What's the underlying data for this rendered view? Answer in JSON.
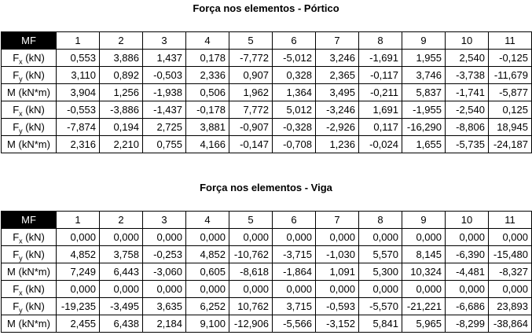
{
  "portico": {
    "title": "Força nos elementos - Pórtico",
    "header_label": "MF",
    "columns": [
      "1",
      "2",
      "3",
      "4",
      "5",
      "6",
      "7",
      "8",
      "9",
      "10",
      "11"
    ],
    "rows": [
      {
        "symbol": "F",
        "sub": "x",
        "unit": "(kN)",
        "values": [
          "0,553",
          "3,886",
          "1,437",
          "0,178",
          "-7,772",
          "-5,012",
          "3,246",
          "-1,691",
          "1,955",
          "2,540",
          "-0,125"
        ]
      },
      {
        "symbol": "F",
        "sub": "y",
        "unit": "(kN)",
        "values": [
          "3,110",
          "0,892",
          "-0,503",
          "2,336",
          "0,907",
          "0,328",
          "2,365",
          "-0,117",
          "3,746",
          "-3,738",
          "-11,679"
        ]
      },
      {
        "symbol": "M",
        "sub": "",
        "unit": "(kN*m)",
        "values": [
          "3,904",
          "1,256",
          "-1,938",
          "0,506",
          "1,962",
          "1,364",
          "3,495",
          "-0,211",
          "5,837",
          "-1,741",
          "-5,877"
        ]
      },
      {
        "symbol": "F",
        "sub": "x",
        "unit": "(kN)",
        "values": [
          "-0,553",
          "-3,886",
          "-1,437",
          "-0,178",
          "7,772",
          "5,012",
          "-3,246",
          "1,691",
          "-1,955",
          "-2,540",
          "0,125"
        ]
      },
      {
        "symbol": "F",
        "sub": "y",
        "unit": "(kN)",
        "values": [
          "-7,874",
          "0,194",
          "2,725",
          "3,881",
          "-0,907",
          "-0,328",
          "-2,926",
          "0,117",
          "-16,290",
          "-8,806",
          "18,945"
        ]
      },
      {
        "symbol": "M",
        "sub": "",
        "unit": "(kN*m)",
        "values": [
          "2,316",
          "2,210",
          "0,755",
          "4,166",
          "-0,147",
          "-0,708",
          "1,236",
          "-0,024",
          "1,655",
          "-5,735",
          "-24,187"
        ]
      }
    ]
  },
  "viga": {
    "title": "Força nos elementos - Viga",
    "header_label": "MF",
    "columns": [
      "1",
      "2",
      "3",
      "4",
      "5",
      "6",
      "7",
      "8",
      "9",
      "10",
      "11"
    ],
    "rows": [
      {
        "symbol": "F",
        "sub": "x",
        "unit": "(kN)",
        "values": [
          "0,000",
          "0,000",
          "0,000",
          "0,000",
          "0,000",
          "0,000",
          "0,000",
          "0,000",
          "0,000",
          "0,000",
          "0,000"
        ]
      },
      {
        "symbol": "F",
        "sub": "y",
        "unit": "(kN)",
        "values": [
          "4,852",
          "3,758",
          "-0,253",
          "4,852",
          "-10,762",
          "-3,715",
          "-1,030",
          "5,570",
          "8,145",
          "-6,390",
          "-15,480"
        ]
      },
      {
        "symbol": "M",
        "sub": "",
        "unit": "(kN*m)",
        "values": [
          "7,249",
          "6,443",
          "-3,060",
          "0,605",
          "-8,618",
          "-1,864",
          "1,091",
          "5,300",
          "10,324",
          "-4,481",
          "-8,327"
        ]
      },
      {
        "symbol": "F",
        "sub": "x",
        "unit": "(kN)",
        "values": [
          "0,000",
          "0,000",
          "0,000",
          "0,000",
          "0,000",
          "0,000",
          "0,000",
          "0,000",
          "0,000",
          "0,000",
          "0,000"
        ]
      },
      {
        "symbol": "F",
        "sub": "y",
        "unit": "(kN)",
        "values": [
          "-19,235",
          "-3,495",
          "3,635",
          "6,252",
          "10,762",
          "3,715",
          "-0,593",
          "-5,570",
          "-21,221",
          "-6,686",
          "23,893"
        ]
      },
      {
        "symbol": "M",
        "sub": "",
        "unit": "(kN*m)",
        "values": [
          "2,455",
          "6,438",
          "2,184",
          "9,100",
          "-12,906",
          "-5,566",
          "-3,152",
          "5,841",
          "5,965",
          "-8,299",
          "-38,864"
        ]
      }
    ]
  }
}
